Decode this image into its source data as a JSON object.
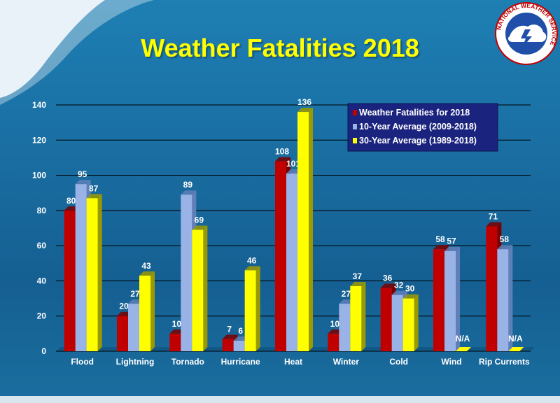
{
  "title": "Weather Fatalities 2018",
  "logo": {
    "text": "NATIONAL WEATHER SERVICE"
  },
  "colors": {
    "series": [
      "#c00000",
      "#99b3e6",
      "#ffff00"
    ],
    "series_side": [
      "#7a0000",
      "#5f7fb8",
      "#9a9a00"
    ],
    "grid": "#000000",
    "axis_text": "#ffffff"
  },
  "chart_data": {
    "type": "bar",
    "title": "Weather Fatalities 2018",
    "categories": [
      "Flood",
      "Lightning",
      "Tornado",
      "Hurricane",
      "Heat",
      "Winter",
      "Cold",
      "Wind",
      "Rip Currents"
    ],
    "series": [
      {
        "name": "Weather Fatalities for 2018",
        "values": [
          80,
          20,
          10,
          7,
          108,
          10,
          36,
          58,
          71
        ]
      },
      {
        "name": "10-Year Average (2009-2018)",
        "values": [
          95,
          27,
          89,
          6,
          101,
          27,
          32,
          57,
          58
        ]
      },
      {
        "name": "30-Year Average (1989-2018)",
        "values": [
          87,
          43,
          69,
          46,
          136,
          37,
          30,
          null,
          null
        ]
      }
    ],
    "na_label": "N/A",
    "ylim": [
      0,
      140
    ],
    "yticks": [
      0,
      20,
      40,
      60,
      80,
      100,
      120,
      140
    ],
    "grid": true,
    "legend_position": "top-right",
    "xlabel": "",
    "ylabel": ""
  }
}
